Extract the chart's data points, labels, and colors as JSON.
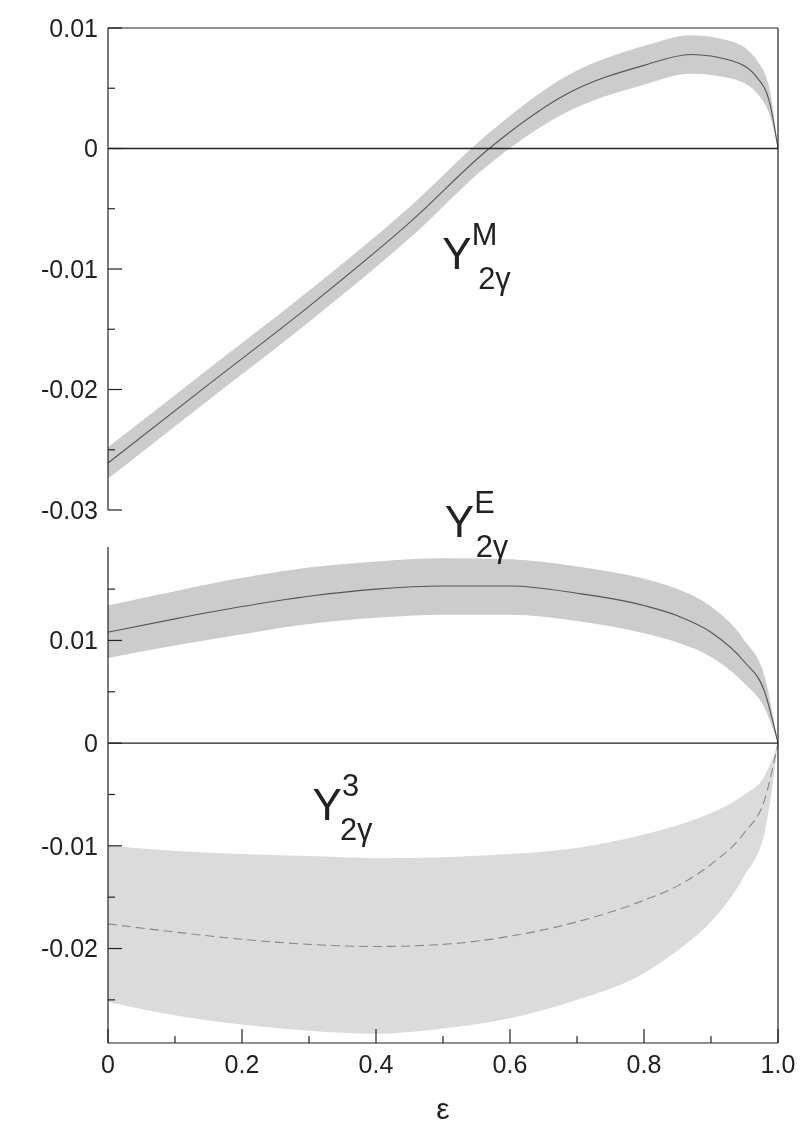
{
  "chart_data": [
    {
      "type": "line",
      "xlim": [
        0,
        1
      ],
      "ylim": [
        -0.03,
        0.01
      ],
      "tick_labels": "y",
      "yticks": [
        0.01,
        {
          "value": 0.005,
          "label": null
        },
        0,
        {
          "value": -0.005,
          "label": null
        },
        -0.01,
        {
          "value": -0.015,
          "label": null
        },
        -0.02,
        {
          "value": -0.025,
          "label": null
        },
        -0.03
      ],
      "ref_lines": [
        {
          "axis": "y",
          "value": 0,
          "color": "#222222"
        }
      ],
      "annotations": [
        "Y$^{M}$$_{2γ}$"
      ],
      "series": [
        {
          "color": "#555555",
          "line_style": "solid",
          "x": [
            0,
            0.145,
            0.3,
            0.453,
            0.569,
            0.684,
            0.8,
            0.87,
            0.93,
            0.97,
            0.988,
            1.0
          ],
          "values": [
            -0.0261,
            -0.0198,
            -0.0131,
            -0.006,
            0,
            0.0045,
            0.0069,
            0.0078,
            0.0073,
            0.0058,
            0.0037,
            0
          ],
          "lower": [
            -0.0274,
            -0.0211,
            -0.0144,
            -0.0073,
            -0.0013,
            0.003,
            0.0053,
            0.0062,
            0.0058,
            0.0045,
            0.0027,
            0
          ],
          "upper": [
            -0.0248,
            -0.0185,
            -0.0118,
            -0.0047,
            0.0013,
            0.006,
            0.0085,
            0.0094,
            0.0089,
            0.0072,
            0.0048,
            0
          ]
        }
      ]
    },
    {
      "type": "line",
      "xlim": [
        0,
        1
      ],
      "ylim": [
        -0.0292,
        0.0191
      ],
      "xlabel": "ε",
      "xticks": [
        0,
        {
          "value": 0.1,
          "label": null
        },
        0.2,
        {
          "value": 0.3,
          "label": null
        },
        0.4,
        {
          "value": 0.5,
          "label": null
        },
        0.6,
        {
          "value": 0.7,
          "label": null
        },
        0.8,
        {
          "value": 0.9,
          "label": null
        },
        {
          "value": 1,
          "label": "1.0"
        }
      ],
      "yticks": [
        {
          "value": 0.015,
          "label": null
        },
        0.01,
        {
          "value": 0.005,
          "label": null
        },
        0,
        {
          "value": -0.005,
          "label": null
        },
        -0.01,
        {
          "value": -0.015,
          "label": null
        },
        -0.02,
        {
          "value": -0.025,
          "label": null
        }
      ],
      "ref_lines": [
        {
          "axis": "y",
          "value": 0,
          "color": "#222222"
        }
      ],
      "annotations": [
        "Y$^{E}$$_{2γ}$",
        "Y$^{3}$$_{2γ}$"
      ],
      "series": [
        {
          "color": "#555555",
          "line_style": "solid",
          "x": [
            0,
            0.1,
            0.2,
            0.3,
            0.4,
            0.5,
            0.6,
            0.7,
            0.8,
            0.85,
            0.9,
            0.95,
            0.98,
            1.0
          ],
          "values": [
            0.0108,
            0.0121,
            0.0133,
            0.0143,
            0.015,
            0.0153,
            0.0153,
            0.0146,
            0.0134,
            0.0124,
            0.0108,
            0.0079,
            0.005,
            0
          ],
          "lower": [
            0.0083,
            0.0095,
            0.0106,
            0.0116,
            0.0122,
            0.0125,
            0.0125,
            0.0119,
            0.0107,
            0.0098,
            0.0084,
            0.0058,
            0.0034,
            0
          ],
          "upper": [
            0.0134,
            0.0148,
            0.0161,
            0.0171,
            0.0177,
            0.018,
            0.0179,
            0.0172,
            0.016,
            0.015,
            0.0133,
            0.01,
            0.0065,
            0
          ]
        },
        {
          "color": "#888888",
          "line_style": "dashed",
          "x": [
            0,
            0.1,
            0.2,
            0.3,
            0.4,
            0.5,
            0.6,
            0.7,
            0.8,
            0.85,
            0.9,
            0.95,
            0.98,
            1.0
          ],
          "values": [
            -0.0176,
            -0.0184,
            -0.0191,
            -0.0196,
            -0.0198,
            -0.0196,
            -0.0188,
            -0.0174,
            -0.0153,
            -0.0139,
            -0.0118,
            -0.0087,
            -0.0055,
            0
          ],
          "lower": [
            -0.0252,
            -0.0265,
            -0.0274,
            -0.028,
            -0.0283,
            -0.0278,
            -0.0268,
            -0.025,
            -0.0224,
            -0.0202,
            -0.0174,
            -0.0129,
            -0.0087,
            0
          ],
          "upper": [
            -0.01,
            -0.0105,
            -0.0108,
            -0.011,
            -0.0112,
            -0.0111,
            -0.0108,
            -0.0102,
            -0.0089,
            -0.008,
            -0.0068,
            -0.005,
            -0.0032,
            0
          ]
        }
      ]
    }
  ]
}
